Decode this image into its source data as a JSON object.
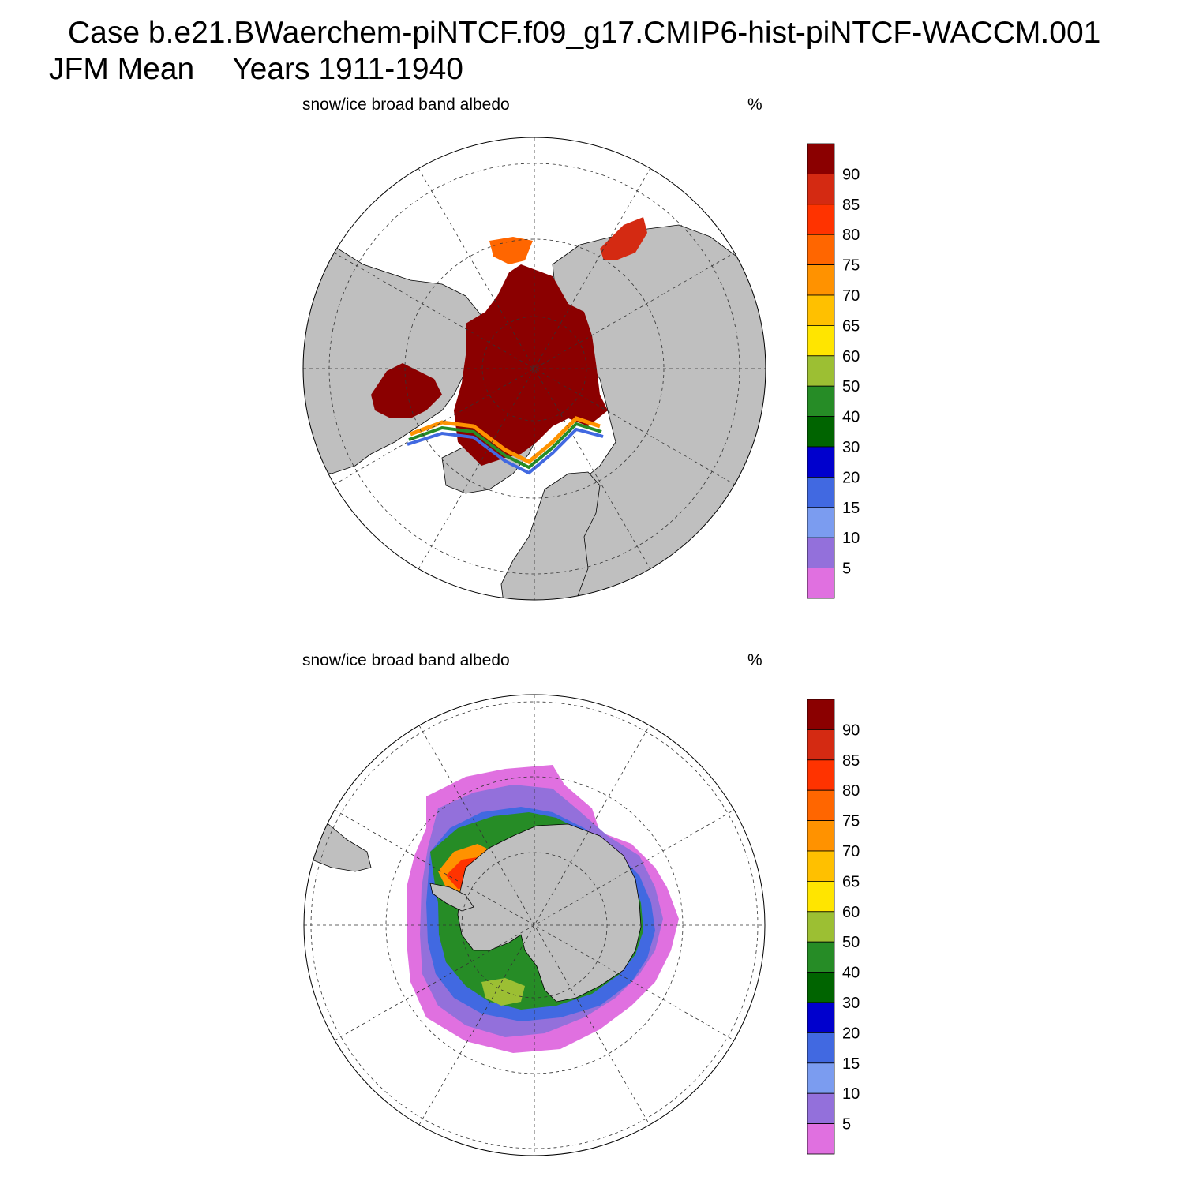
{
  "title": {
    "case": "Case b.e21.BWaerchem-piNTCF.f09_g17.CMIP6-hist-piNTCF-WACCM.001",
    "season": "JFM Mean",
    "years": "Years 1911-1940"
  },
  "colorbar": {
    "labels": [
      "90",
      "85",
      "80",
      "75",
      "70",
      "65",
      "60",
      "50",
      "40",
      "30",
      "20",
      "15",
      "10",
      "5"
    ],
    "colors_top_to_bottom": [
      "#8b0000",
      "#d42a12",
      "#ff3300",
      "#ff6600",
      "#ff9200",
      "#ffc000",
      "#ffe500",
      "#9cbf33",
      "#268c26",
      "#006400",
      "#0000cd",
      "#4169e1",
      "#7b9cf0",
      "#9370db",
      "#e070e0"
    ]
  },
  "colors": {
    "land": "#bfbfbf",
    "ocean": "#ffffff",
    "grid": "#333333"
  },
  "panels": [
    {
      "id": "north",
      "hemisphere": "Arctic (North Polar Stereographic)",
      "field_label": "snow/ice broad band albedo",
      "units": "%"
    },
    {
      "id": "south",
      "hemisphere": "Antarctic (South Polar Stereographic)",
      "field_label": "snow/ice broad band albedo",
      "units": "%"
    }
  ]
}
